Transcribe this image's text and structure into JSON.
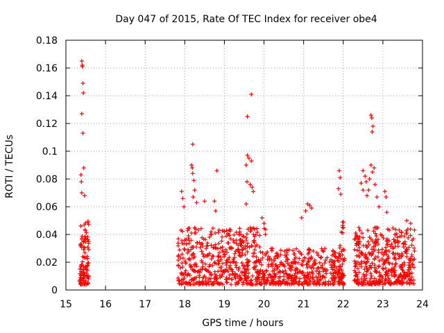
{
  "chart_data": {
    "type": "scatter",
    "title": "Day 047 of 2015, Rate Of TEC Index for receiver obe4",
    "xlabel": "GPS time / hours",
    "ylabel": "ROTI / TECUs",
    "xlim": [
      15,
      24
    ],
    "ylim": [
      0,
      0.18
    ],
    "grid": true,
    "marker": "+",
    "color": "#ff0000",
    "x_ticks": [
      "15",
      "16",
      "17",
      "18",
      "19",
      "20",
      "21",
      "22",
      "23",
      "24"
    ],
    "x_tick_values": [
      15,
      16,
      17,
      18,
      19,
      20,
      21,
      22,
      23,
      24
    ],
    "y_ticks": [
      "0",
      "0.02",
      "0.04",
      "0.06",
      "0.08",
      "0.1",
      "0.12",
      "0.14",
      "0.16",
      "0.18"
    ],
    "y_tick_values": [
      0,
      0.02,
      0.04,
      0.06,
      0.08,
      0.1,
      0.12,
      0.14,
      0.16,
      0.18
    ],
    "clusters": [
      {
        "x_range": [
          15.35,
          15.58
        ],
        "typical_max": 0.05,
        "count": 110
      },
      {
        "x_range": [
          17.83,
          20.05
        ],
        "typical_max": 0.045,
        "count": 520
      },
      {
        "x_range": [
          20.05,
          21.9
        ],
        "typical_max": 0.03,
        "count": 380
      },
      {
        "x_range": [
          21.9,
          22.03
        ],
        "typical_max": 0.05,
        "count": 50
      },
      {
        "x_range": [
          22.27,
          23.8
        ],
        "typical_max": 0.045,
        "count": 420
      }
    ],
    "outliers": [
      [
        15.4,
        0.165
      ],
      [
        15.41,
        0.162
      ],
      [
        15.42,
        0.161
      ],
      [
        15.43,
        0.149
      ],
      [
        15.44,
        0.142
      ],
      [
        15.4,
        0.127
      ],
      [
        15.43,
        0.113
      ],
      [
        15.45,
        0.088
      ],
      [
        15.38,
        0.083
      ],
      [
        15.39,
        0.078
      ],
      [
        15.47,
        0.068
      ],
      [
        15.4,
        0.07
      ],
      [
        17.92,
        0.071
      ],
      [
        17.95,
        0.066
      ],
      [
        17.98,
        0.06
      ],
      [
        18.2,
        0.105
      ],
      [
        18.17,
        0.09
      ],
      [
        18.19,
        0.088
      ],
      [
        18.2,
        0.084
      ],
      [
        18.23,
        0.079
      ],
      [
        18.25,
        0.072
      ],
      [
        18.21,
        0.067
      ],
      [
        18.3,
        0.063
      ],
      [
        18.5,
        0.064
      ],
      [
        18.75,
        0.064
      ],
      [
        18.81,
        0.086
      ],
      [
        18.78,
        0.057
      ],
      [
        19.58,
        0.125
      ],
      [
        19.58,
        0.097
      ],
      [
        19.55,
        0.09
      ],
      [
        19.62,
        0.095
      ],
      [
        19.57,
        0.078
      ],
      [
        19.65,
        0.076
      ],
      [
        19.7,
        0.074
      ],
      [
        19.55,
        0.062
      ],
      [
        19.68,
        0.093
      ],
      [
        19.73,
        0.071
      ],
      [
        19.68,
        0.141
      ],
      [
        19.95,
        0.052
      ],
      [
        20.0,
        0.048
      ],
      [
        20.95,
        0.052
      ],
      [
        21.1,
        0.062
      ],
      [
        21.15,
        0.061
      ],
      [
        21.2,
        0.059
      ],
      [
        21.05,
        0.057
      ],
      [
        21.9,
        0.086
      ],
      [
        21.92,
        0.081
      ],
      [
        21.88,
        0.073
      ],
      [
        21.94,
        0.069
      ],
      [
        22.5,
        0.086
      ],
      [
        22.55,
        0.082
      ],
      [
        22.45,
        0.077
      ],
      [
        22.58,
        0.078
      ],
      [
        22.5,
        0.072
      ],
      [
        22.7,
        0.126
      ],
      [
        22.72,
        0.124
      ],
      [
        22.75,
        0.118
      ],
      [
        22.73,
        0.114
      ],
      [
        22.7,
        0.09
      ],
      [
        22.78,
        0.088
      ],
      [
        22.74,
        0.085
      ],
      [
        22.66,
        0.08
      ],
      [
        22.8,
        0.076
      ],
      [
        22.64,
        0.072
      ],
      [
        22.85,
        0.067
      ],
      [
        22.6,
        0.068
      ],
      [
        23.05,
        0.071
      ],
      [
        23.08,
        0.067
      ],
      [
        23.1,
        0.056
      ],
      [
        22.9,
        0.06
      ],
      [
        23.6,
        0.05
      ],
      [
        23.7,
        0.048
      ]
    ]
  }
}
